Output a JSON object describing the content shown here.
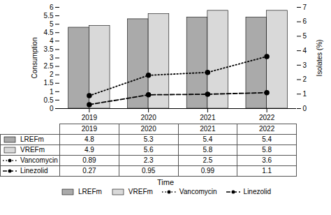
{
  "chart_data": {
    "type": "bar",
    "categories": [
      "2019",
      "2020",
      "2021",
      "2022"
    ],
    "xlabel": "Time",
    "ylabel": "Consumption",
    "y2label": "Isolates (%)",
    "ylim": [
      0,
      6
    ],
    "yticks": [
      0,
      0.5,
      1,
      1.5,
      2,
      2.5,
      3,
      3.5,
      4,
      4.5,
      5,
      5.5,
      6
    ],
    "y2lim": [
      0,
      7
    ],
    "y2ticks": [
      0,
      1,
      2,
      3,
      4,
      5,
      6,
      7
    ],
    "series": [
      {
        "name": "LREFm",
        "type": "bar",
        "color": "#aaaaaa",
        "values": [
          4.8,
          5.3,
          5.4,
          5.4
        ]
      },
      {
        "name": "VREFm",
        "type": "bar",
        "color": "#d9d9d9",
        "values": [
          4.9,
          5.6,
          5.8,
          5.8
        ]
      },
      {
        "name": "Vancomycin",
        "type": "line",
        "axis": "y2",
        "color": "#000000",
        "line_style": "dotted",
        "marker": "circle",
        "values": [
          0.89,
          2.3,
          2.5,
          3.6
        ]
      },
      {
        "name": "Linezolid",
        "type": "line",
        "axis": "y2",
        "color": "#000000",
        "line_style": "dashed",
        "marker": "circle",
        "values": [
          0.27,
          0.95,
          0.99,
          1.1
        ]
      }
    ],
    "grid": false,
    "legend": "bottom",
    "data_labels": true
  }
}
